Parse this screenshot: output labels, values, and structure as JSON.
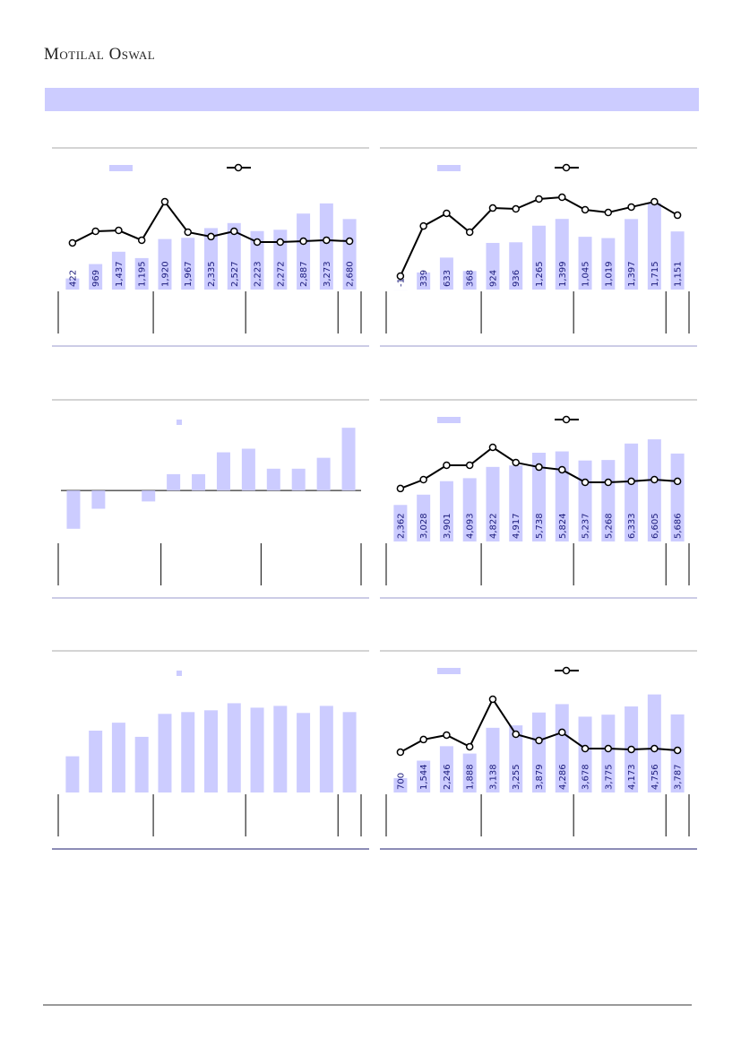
{
  "header": {
    "brand": "Motilal Oswal"
  },
  "chart_data": [
    {
      "type": "combo",
      "ylim": [
        0,
        4700
      ],
      "y2lim": [
        0,
        100
      ],
      "series": [
        {
          "type": "bar",
          "color": "#ccccff",
          "values": [
            422,
            969,
            1437,
            1195,
            1920,
            1967,
            2335,
            2527,
            2223,
            2272,
            2887,
            3273,
            2680
          ],
          "value_labels": [
            "422",
            "969",
            "1,437",
            "1,195",
            "1,920",
            "1,967",
            "2,335",
            "2,527",
            "2,223",
            "2,272",
            "2,887",
            "3,273",
            "2,680"
          ]
        },
        {
          "type": "line",
          "axis": "y2",
          "color": "#000000",
          "values": [
            37.7,
            47.1,
            47.8,
            39.9,
            71.0,
            46.4,
            42.8,
            47.1,
            38.4,
            38.4,
            39.1,
            39.9,
            39.1
          ]
        }
      ]
    },
    {
      "type": "combo",
      "ylim": [
        0,
        2450
      ],
      "y2lim": [
        0,
        100
      ],
      "series": [
        {
          "type": "bar",
          "color": "#ccccff",
          "values": [
            -1,
            339,
            633,
            368,
            924,
            936,
            1265,
            1399,
            1045,
            1019,
            1397,
            1715,
            1151
          ],
          "value_labels": [
            "-1",
            "339",
            "633",
            "368",
            "924",
            "936",
            "1,265",
            "1,399",
            "1,045",
            "1,019",
            "1,397",
            "1,715",
            "1,151"
          ]
        },
        {
          "type": "line",
          "axis": "y2",
          "color": "#000000",
          "values": [
            10.9,
            51.4,
            61.6,
            46.4,
            65.9,
            65.2,
            73.2,
            74.6,
            64.5,
            62.3,
            66.7,
            71.0,
            60.1
          ]
        }
      ]
    },
    {
      "type": "bar",
      "ylim": [
        -28,
        40
      ],
      "series": [
        {
          "type": "bar",
          "color": "#ccccff",
          "values": [
            -21,
            -10,
            0,
            -6,
            9,
            9,
            21,
            23,
            12,
            12,
            18,
            34.5
          ]
        }
      ]
    },
    {
      "type": "combo",
      "ylim": [
        0,
        8000
      ],
      "y2lim": [
        0,
        100
      ],
      "series": [
        {
          "type": "bar",
          "color": "#ccccff",
          "values": [
            2362,
            3028,
            3901,
            4093,
            4822,
            4917,
            5738,
            5824,
            5237,
            5268,
            6333,
            6605,
            5686
          ],
          "value_labels": [
            "2,362",
            "3,028",
            "3,901",
            "4,093",
            "4,822",
            "4,917",
            "5,738",
            "5,824",
            "5,237",
            "5,268",
            "6,333",
            "6,605",
            "5,686"
          ]
        },
        {
          "type": "line",
          "axis": "y2",
          "color": "#000000",
          "values": [
            42.8,
            50.0,
            61.6,
            61.6,
            76.1,
            63.8,
            60.1,
            58.0,
            47.8,
            47.8,
            48.6,
            50.0,
            48.6
          ]
        }
      ]
    },
    {
      "type": "bar",
      "ylim": [
        0,
        140
      ],
      "series": [
        {
          "type": "bar",
          "color": "#ccccff",
          "values": [
            41,
            70,
            79,
            63,
            89,
            91,
            93,
            101,
            96,
            98,
            90,
            98,
            91
          ]
        }
      ]
    },
    {
      "type": "combo",
      "ylim": [
        0,
        6000
      ],
      "y2lim": [
        0,
        100
      ],
      "series": [
        {
          "type": "bar",
          "color": "#ccccff",
          "values": [
            700,
            1544,
            2246,
            1888,
            3138,
            3255,
            3879,
            4286,
            3678,
            3775,
            4173,
            4756,
            3787
          ],
          "value_labels": [
            "700",
            "1,544",
            "2,246",
            "1,888",
            "3,138",
            "3,255",
            "3,879",
            "4,286",
            "3,678",
            "3,775",
            "4,173",
            "4,756",
            "3,787"
          ]
        },
        {
          "type": "line",
          "axis": "y2",
          "color": "#000000",
          "values": [
            32.6,
            42.8,
            46.4,
            37.0,
            75.4,
            47.1,
            42.0,
            48.6,
            35.5,
            35.5,
            34.8,
            35.5,
            34.1
          ]
        }
      ]
    }
  ]
}
